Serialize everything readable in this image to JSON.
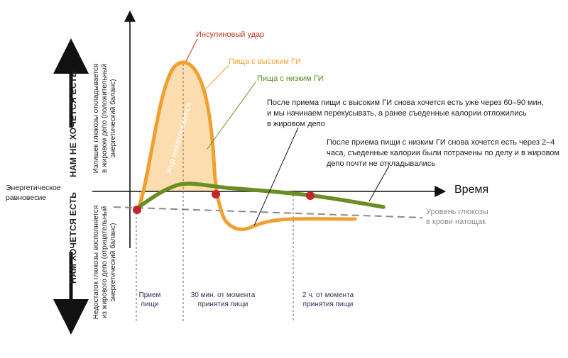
{
  "labels": {
    "x_axis_title": "Время",
    "energy_balance": [
      "Энергетическое",
      "равновесие"
    ],
    "insulin_spike": "Инсулиновый удар",
    "high_gi_food": "Пища с высоким ГИ",
    "low_gi_food": "Пища с низким ГИ",
    "fat_accumulates": "Жир накапливается",
    "fasting_glucose": [
      "Уровень глюкозы",
      "в крови натощак"
    ],
    "not_hungry": "НАМ НЕ ХОЧЕТСЯ ЕСТЬ",
    "hungry": "НАМ ХОЧЕТСЯ ЕСТЬ",
    "surplus_desc": [
      "Излишек глюкозы откладывается",
      "в жировом депо (положительный",
      "энергетический баланс)"
    ],
    "deficit_desc": [
      "Недостаток глюкозы восполняется",
      "из жирового депо (отрицательный",
      "энергетический баланс)"
    ],
    "note_high_gi": [
      "После приема пищи с высоким ГИ снова хочется есть уже через 60–90 мин,",
      "и мы начинаем перекусывать, а ранее съеденные калории отложились",
      "в жировом депо"
    ],
    "note_low_gi": [
      "После приема пищи с низким ГИ снова хочется есть через 2–4",
      "часа, съеденные калории были потрачены по делу и в жировом",
      "депо почти не откладывались"
    ],
    "time_marks": [
      [
        "Прием",
        "пищи"
      ],
      [
        "30 мин. от момента",
        "принятия пищи"
      ],
      [
        "2 ч. от момента",
        "принятия пищи"
      ]
    ]
  },
  "colors": {
    "high_gi": "#f0a030",
    "high_gi_fill": "#fcd9a6",
    "low_gi": "#6b8e23",
    "marker": "#c0262b",
    "axis": "#111111",
    "baseline": "#8a8a8a",
    "insulin_label": "#c0392b"
  }
}
